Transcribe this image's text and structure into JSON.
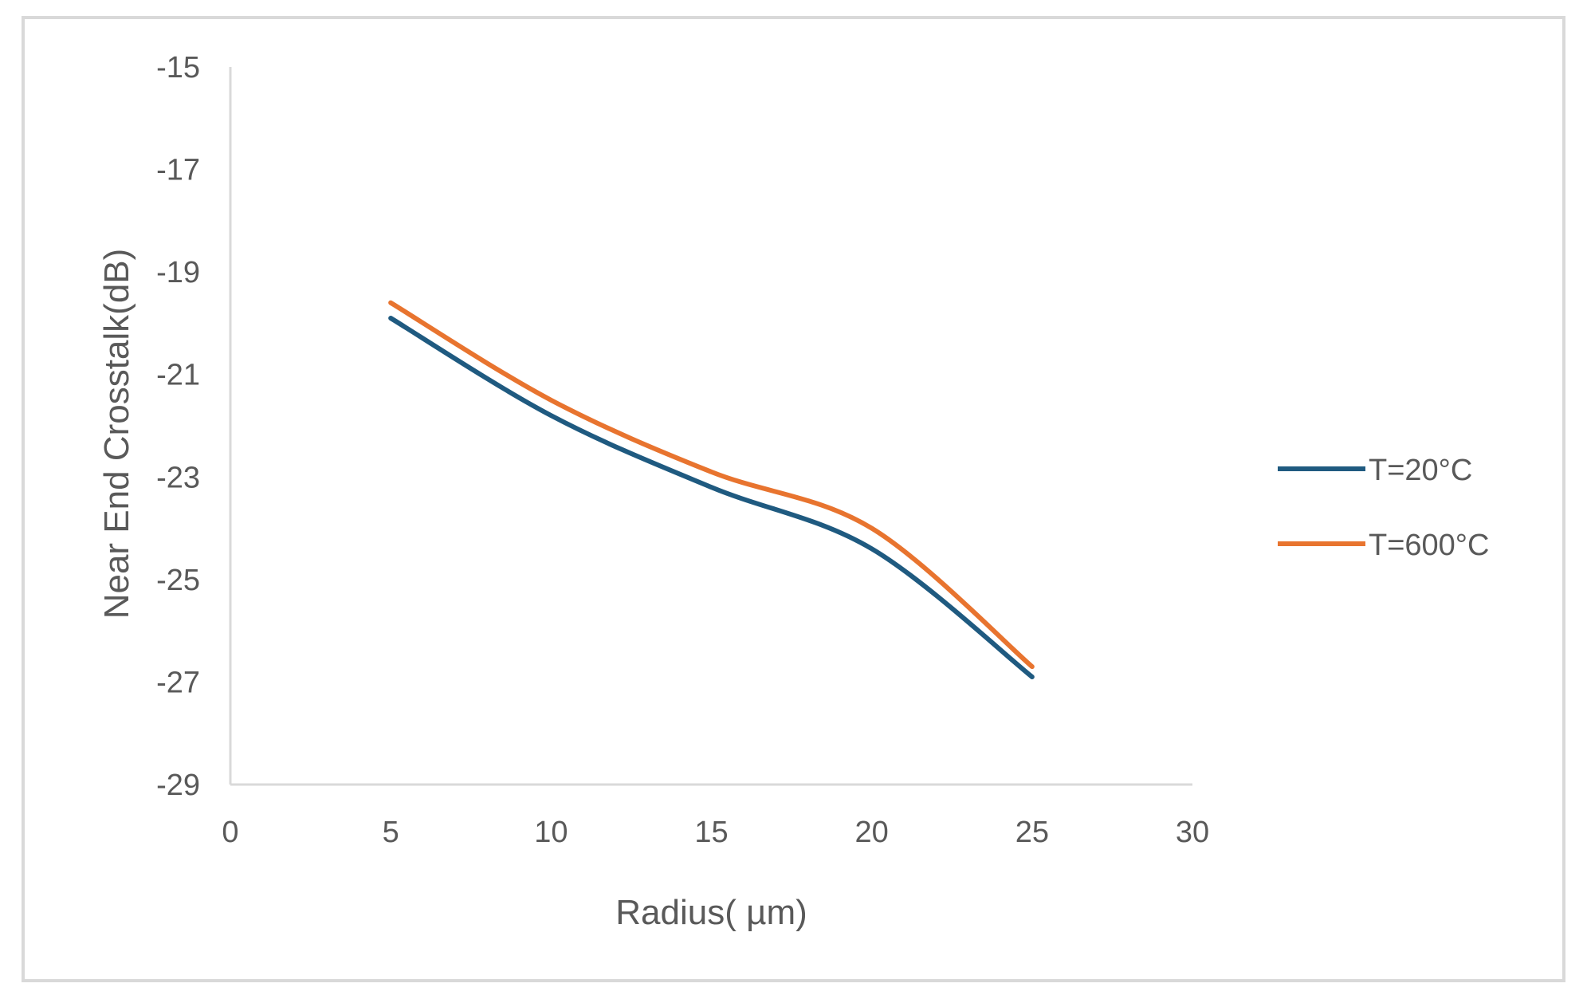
{
  "chart_data": {
    "type": "line",
    "title": "",
    "xlabel": "Radius( µm)",
    "ylabel": "Near End Crosstalk(dB)",
    "xlim": [
      0,
      30
    ],
    "ylim": [
      -29,
      -15
    ],
    "xticks": [
      0,
      5,
      10,
      15,
      20,
      25,
      30
    ],
    "yticks": [
      -15,
      -17,
      -19,
      -21,
      -23,
      -25,
      -27,
      -29
    ],
    "grid": false,
    "legend_position": "right",
    "x": [
      5,
      10,
      15,
      20,
      25
    ],
    "series": [
      {
        "name": "T=20°C",
        "color": "#1f5a80",
        "values": [
          -19.9,
          -21.8,
          -23.2,
          -24.4,
          -26.9
        ]
      },
      {
        "name": "T=600°C",
        "color": "#e8742f",
        "values": [
          -19.6,
          -21.5,
          -22.9,
          -24.0,
          -26.7
        ]
      }
    ]
  }
}
